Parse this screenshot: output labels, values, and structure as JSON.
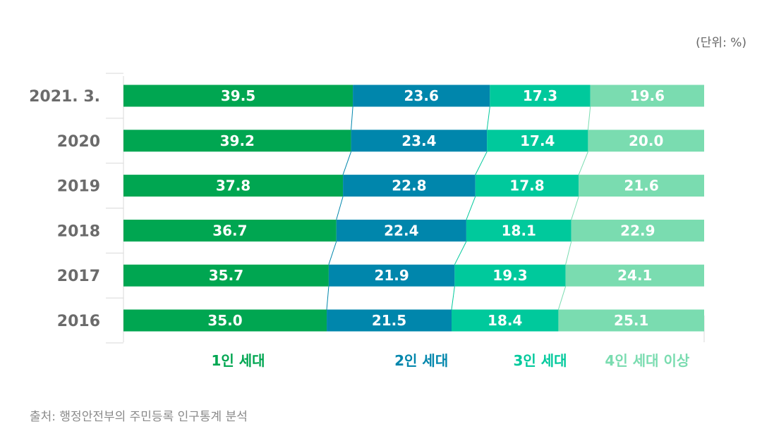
{
  "unit_label": "(단위: %)",
  "source": "출처: 행정안전부의 주민등록 인구통계 분석",
  "chart_data": {
    "type": "bar",
    "orientation": "horizontal",
    "stacked": true,
    "normalized_percent": true,
    "title": "",
    "xlabel": "",
    "ylabel": "",
    "xlim": [
      0,
      100
    ],
    "legend_position": "bottom",
    "grid": false,
    "categories": [
      "2021. 3.",
      "2020",
      "2019",
      "2018",
      "2017",
      "2016"
    ],
    "series": [
      {
        "name": "1인 세대",
        "color": "#00a651",
        "values": [
          39.5,
          39.2,
          37.8,
          36.7,
          35.7,
          35.0
        ]
      },
      {
        "name": "2인 세대",
        "color": "#0086ac",
        "values": [
          23.6,
          23.4,
          22.8,
          22.4,
          21.9,
          21.5
        ]
      },
      {
        "name": "3인 세대",
        "color": "#00c99c",
        "values": [
          17.3,
          17.4,
          17.8,
          18.1,
          19.3,
          18.4
        ]
      },
      {
        "name": "4인 세대 이상",
        "color": "#7adcb0",
        "values": [
          19.6,
          20.0,
          21.6,
          22.9,
          24.1,
          25.1
        ]
      }
    ]
  }
}
